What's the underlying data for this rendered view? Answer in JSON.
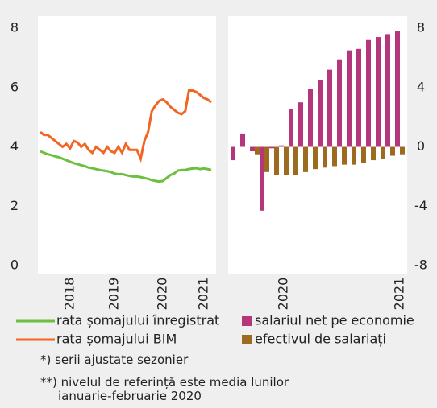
{
  "chart_data": [
    {
      "type": "line",
      "categories": [
        null,
        null,
        null,
        null,
        null,
        null,
        null,
        null,
        "2018",
        null,
        null,
        null,
        null,
        null,
        null,
        null,
        null,
        null,
        null,
        null,
        "2019",
        null,
        null,
        null,
        null,
        null,
        null,
        null,
        null,
        null,
        null,
        null,
        null,
        "2020",
        null,
        null,
        null,
        null,
        null,
        null,
        null,
        null,
        null,
        null,
        "2021",
        null,
        null
      ],
      "series": [
        {
          "name": "rata șomajului înregistrat",
          "color": "#6cbf3f",
          "values": [
            3.85,
            3.8,
            3.75,
            3.72,
            3.68,
            3.65,
            3.6,
            3.55,
            3.5,
            3.45,
            3.42,
            3.38,
            3.35,
            3.3,
            3.28,
            3.25,
            3.22,
            3.2,
            3.18,
            3.15,
            3.1,
            3.08,
            3.08,
            3.05,
            3.02,
            3.0,
            3.0,
            2.98,
            2.95,
            2.92,
            2.88,
            2.85,
            2.83,
            2.85,
            2.95,
            3.05,
            3.1,
            3.2,
            3.22,
            3.22,
            3.25,
            3.27,
            3.28,
            3.25,
            3.27,
            3.25,
            3.22
          ]
        },
        {
          "name": "rata șomajului BIM",
          "color": "#f26522",
          "values": [
            4.5,
            4.4,
            4.4,
            4.3,
            4.2,
            4.1,
            4.0,
            4.1,
            3.95,
            4.2,
            4.15,
            4.0,
            4.1,
            3.9,
            3.8,
            4.0,
            3.9,
            3.8,
            4.0,
            3.85,
            3.8,
            4.0,
            3.8,
            4.1,
            3.9,
            3.9,
            3.9,
            3.6,
            4.2,
            4.5,
            5.2,
            5.4,
            5.55,
            5.6,
            5.5,
            5.35,
            5.25,
            5.15,
            5.1,
            5.2,
            5.9,
            5.9,
            5.85,
            5.75,
            5.65,
            5.6,
            5.5
          ]
        }
      ],
      "ylim": [
        0,
        8
      ],
      "yticks": [
        0,
        2,
        4,
        6,
        8
      ]
    },
    {
      "type": "bar",
      "categories": [
        null,
        null,
        null,
        null,
        null,
        "2020",
        null,
        null,
        null,
        null,
        null,
        null,
        null,
        null,
        null,
        null,
        null,
        "2021"
      ],
      "series": [
        {
          "name": "salariul net pe economie",
          "color": "#b5367a",
          "values": [
            -0.9,
            0.9,
            -0.3,
            -4.3,
            -0.1,
            0.1,
            2.55,
            3.0,
            3.9,
            4.5,
            5.2,
            5.9,
            6.5,
            6.6,
            7.2,
            7.4,
            7.6,
            7.8
          ]
        },
        {
          "name": "efectivul de salariați",
          "color": "#9c6b1f",
          "values": [
            null,
            null,
            -0.5,
            -1.7,
            -1.9,
            -1.9,
            -1.9,
            -1.7,
            -1.5,
            -1.4,
            -1.3,
            -1.2,
            -1.2,
            -1.1,
            -0.9,
            -0.8,
            -0.6,
            -0.5
          ]
        }
      ],
      "ylim": [
        -8,
        8
      ],
      "yticks": [
        -8,
        -4,
        0,
        4,
        8
      ]
    }
  ],
  "notes": [
    "*) serii ajustate sezonier",
    "**) nivelul de referință este media lunilor ianuarie-februarie 2020"
  ]
}
